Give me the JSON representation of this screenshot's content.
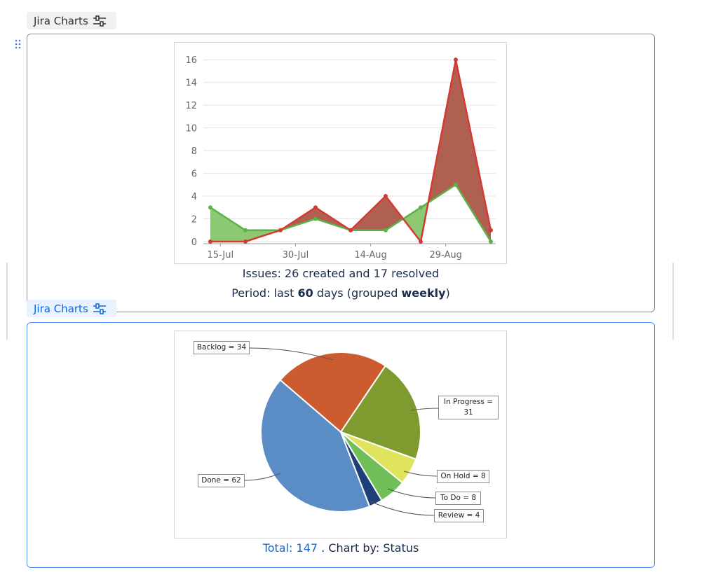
{
  "panels": [
    {
      "label": "Jira Charts"
    },
    {
      "label": "Jira Charts"
    }
  ],
  "chart_data": [
    {
      "type": "area-difference",
      "x": [
        "13-Jul",
        "20-Jul",
        "27-Jul",
        "3-Aug",
        "10-Aug",
        "17-Aug",
        "24-Aug",
        "31-Aug",
        "7-Sep"
      ],
      "xlim": [
        "13-Jul",
        "7-Sep"
      ],
      "xticks": [
        "15-Jul",
        "30-Jul",
        "14-Aug",
        "29-Aug"
      ],
      "ylim": [
        0,
        17
      ],
      "yticks": [
        0,
        2,
        4,
        6,
        8,
        10,
        12,
        14,
        16
      ],
      "grid": true,
      "series": [
        {
          "color": "#5db248",
          "fill": "#8dc873",
          "values": [
            3,
            1,
            1,
            2,
            1,
            1,
            3,
            5,
            0
          ]
        },
        {
          "color": "#d23b34",
          "fill": "#b06050",
          "values": [
            0,
            0,
            1,
            3,
            1,
            4,
            0,
            16,
            1
          ]
        }
      ],
      "caption": "Issues: 26 created and 17 resolved",
      "caption2": [
        "Period: last ",
        "60",
        " days (grouped ",
        "weekly",
        ")"
      ]
    },
    {
      "type": "pie",
      "values": [
        34,
        31,
        8,
        8,
        4,
        62
      ],
      "value_labels": [
        "Backlog = 34",
        "In Progress = 31",
        "On Hold = 8",
        "To Do = 8",
        "Review = 4",
        "Done = 62"
      ],
      "colors": [
        "#cc5c30",
        "#7f9a2f",
        "#e0e35c",
        "#70be58",
        "#1f3f7a",
        "#5a8dc6"
      ],
      "total_link": "Total: 147",
      "caption": " . Chart by: Status"
    }
  ]
}
